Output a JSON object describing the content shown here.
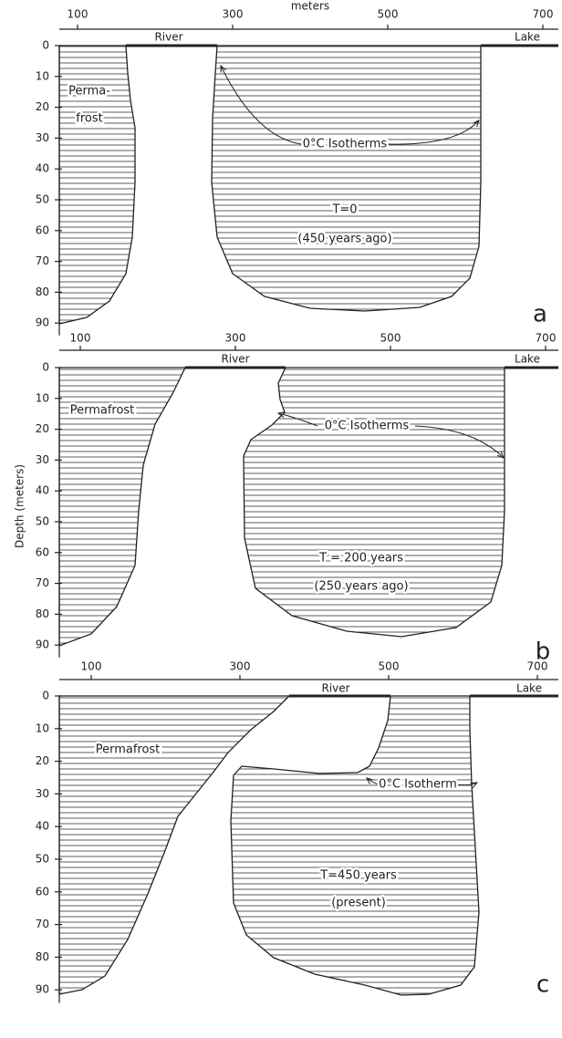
{
  "x_axis_title": "meters",
  "y_axis_title": "Depth (meters)",
  "panels": [
    {
      "letter": "a",
      "x_ticks": [
        100,
        300,
        500,
        700
      ],
      "depth_ticks": [
        0,
        10,
        20,
        30,
        40,
        50,
        60,
        70,
        80,
        90
      ],
      "river": "River",
      "lake": "Lake",
      "permafrost": [
        "Perma-",
        "frost"
      ],
      "isotherm": "0°C Isotherms",
      "time": "T=0",
      "when": "(450 years ago)"
    },
    {
      "letter": "b",
      "x_ticks": [
        100,
        300,
        500,
        700
      ],
      "depth_ticks": [
        0,
        10,
        20,
        30,
        40,
        50,
        60,
        70,
        80,
        90
      ],
      "river": "River",
      "lake": "Lake",
      "permafrost": [
        "Permafrost"
      ],
      "isotherm": "0°C Isotherms",
      "time": "T = 200 years",
      "when": "(250 years ago)"
    },
    {
      "letter": "c",
      "x_ticks": [
        100,
        300,
        500,
        700
      ],
      "depth_ticks": [
        0,
        10,
        20,
        30,
        40,
        50,
        60,
        70,
        80,
        90
      ],
      "river": "River",
      "lake": "Lake",
      "permafrost": [
        "Permafrost"
      ],
      "isotherm": "0°C Isotherm",
      "time": "T=450 years",
      "when": "(present)"
    }
  ]
}
